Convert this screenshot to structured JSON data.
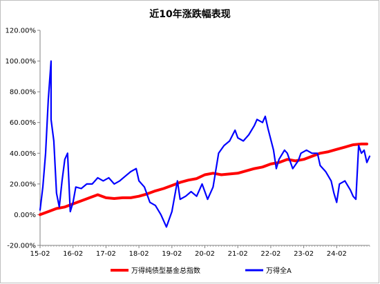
{
  "chart_data": {
    "type": "line",
    "title": "近10年涨跌幅表现",
    "xlabel": "",
    "ylabel": "",
    "x_ticks": [
      "15-02",
      "16-02",
      "17-02",
      "18-02",
      "19-02",
      "20-02",
      "21-02",
      "22-02",
      "23-02",
      "24-02"
    ],
    "y_ticks": [
      "-20.00%",
      "0.00%",
      "20.00%",
      "40.00%",
      "60.00%",
      "80.00%",
      "100.00%",
      "120.00%"
    ],
    "ylim": [
      -20,
      120
    ],
    "x_range": [
      "2015-02",
      "2025-02"
    ],
    "grid": false,
    "legend_position": "bottom",
    "series": [
      {
        "name": "万得纯债型基金总指数",
        "color": "#ff0000",
        "points": [
          [
            "2015-02",
            0
          ],
          [
            "2015-05",
            2
          ],
          [
            "2015-08",
            4
          ],
          [
            "2015-11",
            5
          ],
          [
            "2016-02",
            7
          ],
          [
            "2016-05",
            9
          ],
          [
            "2016-08",
            11
          ],
          [
            "2016-11",
            13
          ],
          [
            "2017-02",
            11
          ],
          [
            "2017-05",
            10.5
          ],
          [
            "2017-08",
            11
          ],
          [
            "2017-11",
            11
          ],
          [
            "2018-02",
            12
          ],
          [
            "2018-05",
            13.5
          ],
          [
            "2018-08",
            15.5
          ],
          [
            "2018-11",
            17
          ],
          [
            "2019-02",
            19
          ],
          [
            "2019-05",
            21
          ],
          [
            "2019-08",
            22.5
          ],
          [
            "2019-11",
            23.5
          ],
          [
            "2020-02",
            26
          ],
          [
            "2020-05",
            27
          ],
          [
            "2020-08",
            26
          ],
          [
            "2020-11",
            26.5
          ],
          [
            "2021-02",
            27
          ],
          [
            "2021-05",
            28.5
          ],
          [
            "2021-08",
            30
          ],
          [
            "2021-11",
            31
          ],
          [
            "2022-02",
            33
          ],
          [
            "2022-05",
            34
          ],
          [
            "2022-08",
            36
          ],
          [
            "2022-11",
            35
          ],
          [
            "2023-02",
            36
          ],
          [
            "2023-05",
            38
          ],
          [
            "2023-08",
            40
          ],
          [
            "2023-11",
            41
          ],
          [
            "2024-02",
            42.5
          ],
          [
            "2024-05",
            44
          ],
          [
            "2024-08",
            45.5
          ],
          [
            "2024-11",
            46
          ],
          [
            "2025-01",
            46
          ]
        ]
      },
      {
        "name": "万得全A",
        "color": "#0000ff",
        "points": [
          [
            "2015-02",
            3
          ],
          [
            "2015-03",
            18
          ],
          [
            "2015-04",
            40
          ],
          [
            "2015-05",
            75
          ],
          [
            "2015-06",
            100
          ],
          [
            "2015-06",
            62
          ],
          [
            "2015-07",
            48
          ],
          [
            "2015-08",
            14
          ],
          [
            "2015-09",
            5
          ],
          [
            "2015-10",
            22
          ],
          [
            "2015-11",
            36
          ],
          [
            "2015-12",
            40
          ],
          [
            "2016-01",
            2
          ],
          [
            "2016-02",
            8
          ],
          [
            "2016-03",
            18
          ],
          [
            "2016-05",
            17
          ],
          [
            "2016-07",
            20
          ],
          [
            "2016-09",
            20
          ],
          [
            "2016-11",
            24
          ],
          [
            "2017-01",
            22
          ],
          [
            "2017-03",
            24
          ],
          [
            "2017-05",
            20
          ],
          [
            "2017-07",
            22
          ],
          [
            "2017-09",
            25
          ],
          [
            "2017-11",
            28
          ],
          [
            "2018-01",
            30
          ],
          [
            "2018-02",
            22
          ],
          [
            "2018-04",
            18
          ],
          [
            "2018-06",
            8
          ],
          [
            "2018-08",
            6
          ],
          [
            "2018-10",
            0
          ],
          [
            "2018-12",
            -8
          ],
          [
            "2019-02",
            2
          ],
          [
            "2019-04",
            22
          ],
          [
            "2019-05",
            10
          ],
          [
            "2019-07",
            12
          ],
          [
            "2019-09",
            15
          ],
          [
            "2019-11",
            12
          ],
          [
            "2020-01",
            20
          ],
          [
            "2020-03",
            10
          ],
          [
            "2020-05",
            18
          ],
          [
            "2020-07",
            40
          ],
          [
            "2020-09",
            45
          ],
          [
            "2020-11",
            48
          ],
          [
            "2021-01",
            55
          ],
          [
            "2021-02",
            50
          ],
          [
            "2021-04",
            48
          ],
          [
            "2021-06",
            52
          ],
          [
            "2021-08",
            58
          ],
          [
            "2021-09",
            62
          ],
          [
            "2021-11",
            60
          ],
          [
            "2021-12",
            64
          ],
          [
            "2022-01",
            56
          ],
          [
            "2022-03",
            42
          ],
          [
            "2022-04",
            30
          ],
          [
            "2022-05",
            36
          ],
          [
            "2022-07",
            42
          ],
          [
            "2022-08",
            40
          ],
          [
            "2022-10",
            30
          ],
          [
            "2022-12",
            35
          ],
          [
            "2023-01",
            40
          ],
          [
            "2023-03",
            42
          ],
          [
            "2023-05",
            40
          ],
          [
            "2023-07",
            40
          ],
          [
            "2023-08",
            32
          ],
          [
            "2023-10",
            28
          ],
          [
            "2023-12",
            22
          ],
          [
            "2024-01",
            14
          ],
          [
            "2024-02",
            8
          ],
          [
            "2024-03",
            20
          ],
          [
            "2024-05",
            22
          ],
          [
            "2024-07",
            16
          ],
          [
            "2024-08",
            12
          ],
          [
            "2024-09",
            10
          ],
          [
            "2024-10",
            45
          ],
          [
            "2024-11",
            40
          ],
          [
            "2024-12",
            42
          ],
          [
            "2025-01",
            34
          ],
          [
            "2025-02",
            38
          ]
        ]
      }
    ]
  }
}
